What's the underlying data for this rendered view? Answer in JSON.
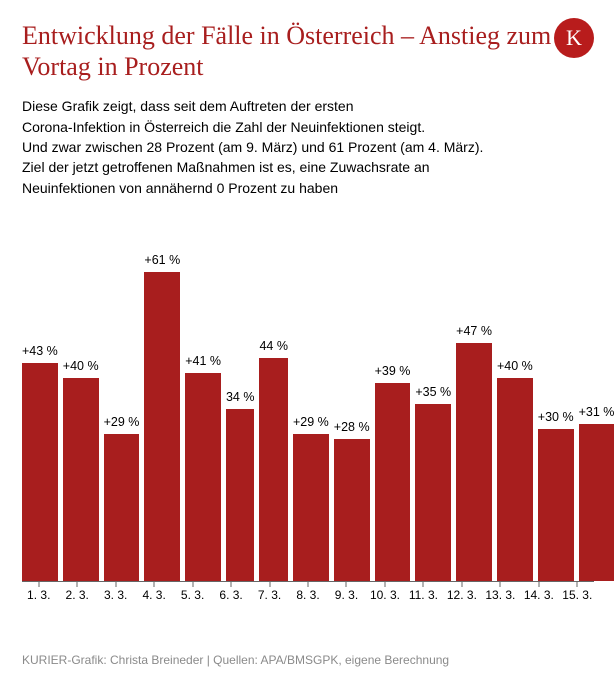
{
  "logo": {
    "letter": "K",
    "bg_color": "#b81c1c",
    "text_color": "#ffffff"
  },
  "header": {
    "title": "Entwicklung der Fälle in Österreich – Anstieg zum Vortag in Prozent",
    "title_color": "#a81e1e",
    "title_fontsize": 26,
    "description": "Diese Grafik zeigt, dass seit dem Auftreten der ersten\nCorona-Infektion in Österreich die Zahl der Neuinfektionen steigt.\nUnd zwar zwischen 28 Prozent (am 9. März) und 61 Prozent (am 4. März).\nZiel der jetzt getroffenen Maßnahmen ist es, eine Zuwachsrate an\nNeuinfektionen von annähernd 0 Prozent zu haben",
    "description_fontsize": 14,
    "description_color": "#000000"
  },
  "chart": {
    "type": "bar",
    "bar_color": "#a81e1e",
    "background_color": "#ffffff",
    "axis_color": "#666666",
    "ylim": [
      0,
      65
    ],
    "label_fontsize": 12.5,
    "x_label_fontsize": 12,
    "bars": [
      {
        "category": "1. 3.",
        "value": 43,
        "label": "+43 %"
      },
      {
        "category": "2. 3.",
        "value": 40,
        "label": "+40 %"
      },
      {
        "category": "3. 3.",
        "value": 29,
        "label": "+29 %"
      },
      {
        "category": "4. 3.",
        "value": 61,
        "label": "+61 %"
      },
      {
        "category": "5. 3.",
        "value": 41,
        "label": "+41 %"
      },
      {
        "category": "6. 3.",
        "value": 34,
        "label": "34 %"
      },
      {
        "category": "7. 3.",
        "value": 44,
        "label": "44 %"
      },
      {
        "category": "8. 3.",
        "value": 29,
        "label": "+29 %"
      },
      {
        "category": "9. 3.",
        "value": 28,
        "label": "+28 %"
      },
      {
        "category": "10. 3.",
        "value": 39,
        "label": "+39 %"
      },
      {
        "category": "11. 3.",
        "value": 35,
        "label": "+35 %"
      },
      {
        "category": "12. 3.",
        "value": 47,
        "label": "+47 %"
      },
      {
        "category": "13. 3.",
        "value": 40,
        "label": "+40 %"
      },
      {
        "category": "14. 3.",
        "value": 30,
        "label": "+30 %"
      },
      {
        "category": "15. 3.",
        "value": 31,
        "label": "+31 %"
      }
    ]
  },
  "source": {
    "text": "KURIER-Grafik: Christa Breineder | Quellen: APA/BMSGPK, eigene Berechnung",
    "color": "#8a8a8a",
    "fontsize": 12
  }
}
